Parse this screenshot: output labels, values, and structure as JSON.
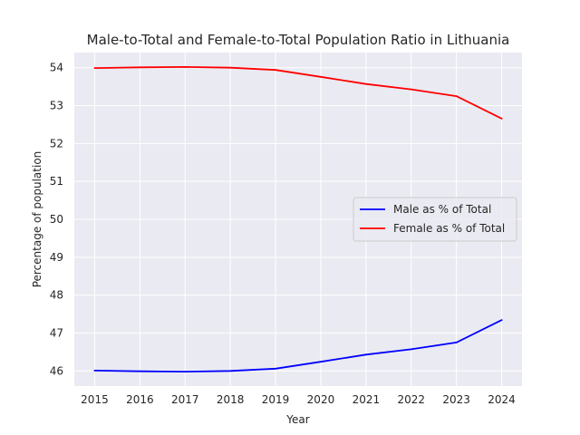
{
  "chart_data": {
    "type": "line",
    "title": "Male-to-Total and Female-to-Total Population Ratio in Lithuania",
    "xlabel": "Year",
    "ylabel": "Percentage of population",
    "x": [
      2015,
      2016,
      2017,
      2018,
      2019,
      2020,
      2021,
      2022,
      2023,
      2024
    ],
    "xlim": [
      2014.55,
      2024.45
    ],
    "ylim": [
      45.6,
      54.4
    ],
    "yticks": [
      46,
      47,
      48,
      49,
      50,
      51,
      52,
      53,
      54
    ],
    "grid": true,
    "legend_position": "center-right",
    "series": [
      {
        "name": "Male as % of Total",
        "color": "#0000ff",
        "values": [
          46.01,
          45.99,
          45.98,
          46.0,
          46.06,
          46.24,
          46.43,
          46.57,
          46.75,
          47.34
        ]
      },
      {
        "name": "Female as % of Total",
        "color": "#ff0000",
        "values": [
          53.99,
          54.01,
          54.02,
          54.0,
          53.94,
          53.76,
          53.57,
          53.43,
          53.25,
          52.66
        ]
      }
    ]
  }
}
